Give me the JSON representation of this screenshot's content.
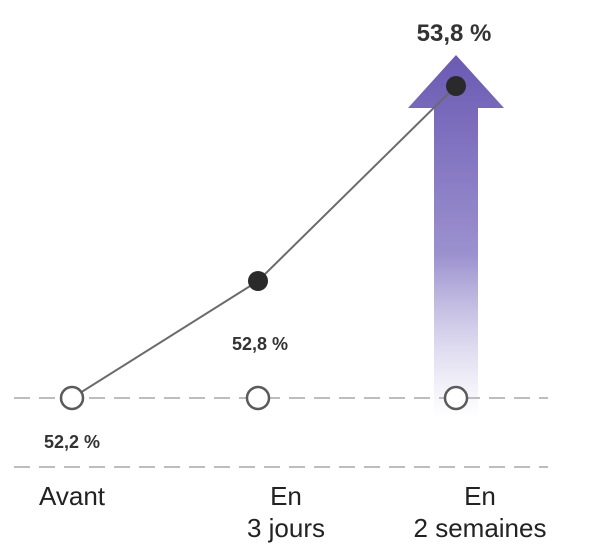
{
  "chart_data": {
    "type": "line",
    "categories": [
      [
        "Avant"
      ],
      [
        "En",
        "3 jours"
      ],
      [
        "En",
        "2 semaines"
      ]
    ],
    "series": [
      {
        "values": [
          52.2,
          52.8,
          53.8
        ],
        "value_labels": [
          "52,2 %",
          "52,8 %",
          "53,8 %"
        ],
        "baseline_markers": [
          "hollow",
          "hollow",
          "hollow"
        ],
        "point_markers": [
          "hollow",
          "filled",
          "filled"
        ]
      }
    ],
    "highlight": {
      "category_index": 2,
      "style": "upward-arrow"
    },
    "ylim": [
      51.9,
      54.1
    ],
    "grid": false,
    "colors": {
      "line": "#6b6b6b",
      "marker_fill": "#2a2a2a",
      "arrow_top": "#6a5ab3",
      "arrow_bottom": "#ffffff",
      "dashed_rule": "#bdbdbd"
    }
  }
}
